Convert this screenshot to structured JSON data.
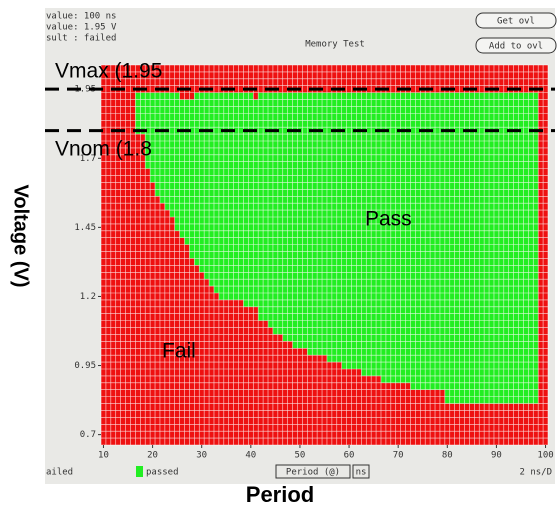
{
  "chart_data": {
    "type": "shmoo",
    "title": "Memory Test",
    "header": [
      "value: 100 ns",
      "value: 1.95 V",
      "sult : failed"
    ],
    "buttons": [
      "Get ovl",
      "Add to ovl"
    ],
    "xlabel": "Period",
    "ylabel": "Voltage (V)",
    "status": {
      "left": "ailed",
      "legend_pass": "passed",
      "mode": "Period (@)",
      "unit": "ns",
      "right": "2 ns/D"
    },
    "region_labels": [
      "Pass",
      "Fail"
    ],
    "annotations": [
      {
        "text": "Vmax (1.95",
        "value": 1.95
      },
      {
        "text": "Vnom (1.8",
        "value": 1.8
      }
    ],
    "pass_color": "#22ee22",
    "fail_color": "#ee1111",
    "x": [
      10,
      11,
      12,
      13,
      14,
      15,
      16,
      17,
      18,
      19,
      20,
      21,
      22,
      23,
      24,
      25,
      26,
      27,
      28,
      29,
      30,
      31,
      32,
      33,
      34,
      35,
      36,
      37,
      38,
      39,
      40,
      41,
      42,
      43,
      44,
      45,
      46,
      47,
      48,
      49,
      50,
      51,
      52,
      53,
      54,
      55,
      56,
      57,
      58,
      59,
      60,
      61,
      62,
      63,
      64,
      65,
      66,
      67,
      68,
      69,
      70,
      71,
      72,
      73,
      74,
      75,
      76,
      77,
      78,
      79,
      80,
      81,
      82,
      83,
      84,
      85,
      86,
      87,
      88,
      89,
      90,
      91,
      92,
      93,
      94,
      95,
      96,
      97,
      98,
      99,
      100
    ],
    "pass_min": [
      null,
      null,
      null,
      null,
      null,
      null,
      null,
      1.8,
      1.8,
      1.675,
      1.625,
      1.575,
      1.55,
      1.525,
      1.5,
      1.45,
      1.425,
      1.4,
      1.35,
      1.325,
      1.3,
      1.275,
      1.25,
      1.225,
      1.2,
      1.2,
      1.2,
      1.2,
      1.2,
      1.175,
      1.175,
      1.175,
      1.125,
      1.125,
      1.1,
      1.075,
      1.075,
      1.05,
      1.05,
      1.025,
      1.025,
      1.025,
      1.0,
      1.0,
      1.0,
      1.0,
      0.975,
      0.975,
      0.975,
      0.95,
      0.95,
      0.95,
      0.95,
      0.925,
      0.925,
      0.925,
      0.925,
      0.9,
      0.9,
      0.9,
      0.9,
      0.9,
      0.9,
      0.875,
      0.875,
      0.875,
      0.875,
      0.875,
      0.875,
      0.875,
      0.825,
      0.825,
      0.825,
      0.825,
      0.825,
      0.825,
      0.825,
      0.825,
      0.825,
      0.825,
      0.825,
      0.825,
      0.825,
      0.825,
      0.825,
      0.825,
      0.825,
      0.825,
      0.825,
      null,
      null
    ],
    "pass_max": [
      null,
      null,
      null,
      null,
      null,
      null,
      null,
      1.925,
      1.925,
      1.925,
      1.925,
      1.925,
      1.925,
      1.925,
      1.925,
      1.925,
      1.9,
      1.9,
      1.9,
      1.925,
      1.925,
      1.925,
      1.925,
      1.925,
      1.925,
      1.925,
      1.925,
      1.925,
      1.925,
      1.925,
      1.925,
      1.9,
      1.925,
      1.925,
      1.925,
      1.925,
      1.925,
      1.925,
      1.925,
      1.925,
      1.925,
      1.925,
      1.925,
      1.925,
      1.925,
      1.925,
      1.925,
      1.925,
      1.925,
      1.925,
      1.925,
      1.925,
      1.925,
      1.925,
      1.925,
      1.925,
      1.925,
      1.925,
      1.925,
      1.925,
      1.925,
      1.925,
      1.925,
      1.925,
      1.925,
      1.925,
      1.925,
      1.925,
      1.925,
      1.925,
      1.925,
      1.925,
      1.925,
      1.925,
      1.925,
      1.925,
      1.925,
      1.925,
      1.925,
      1.925,
      1.925,
      1.925,
      1.925,
      1.925,
      1.925,
      1.925,
      1.925,
      1.925,
      1.925,
      null,
      null
    ],
    "xlim": [
      9.5,
      100.5
    ],
    "ylim": [
      0.6625,
      2.0375
    ],
    "xticks": [
      10,
      20,
      30,
      40,
      50,
      60,
      70,
      80,
      90,
      100
    ],
    "yticks": [
      0.7,
      0.95,
      1.2,
      1.45,
      1.7,
      1.95
    ]
  }
}
